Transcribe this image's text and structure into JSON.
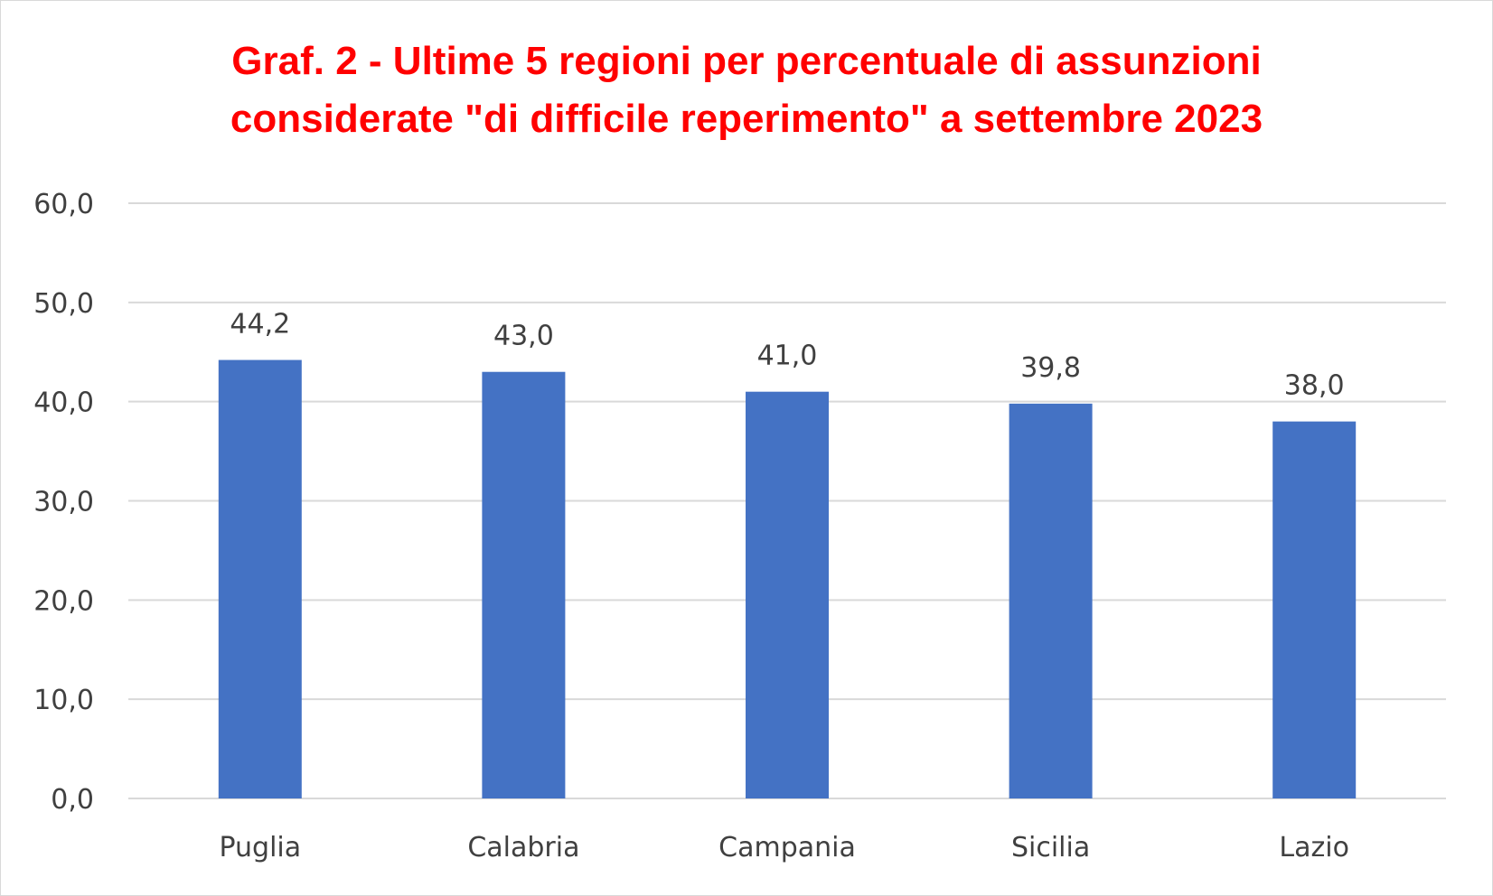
{
  "chart_data": {
    "type": "bar",
    "title_lines": [
      "Graf. 2 - Ultime 5 regioni per percentuale di assunzioni",
      "considerate \"di difficile reperimento\" a settembre 2023"
    ],
    "categories": [
      "Puglia",
      "Calabria",
      "Campania",
      "Sicilia",
      "Lazio"
    ],
    "values": [
      44.2,
      43.0,
      41.0,
      39.8,
      38.0
    ],
    "data_labels": [
      "44,2",
      "43,0",
      "41,0",
      "39,8",
      "38,0"
    ],
    "ylim": [
      0,
      60
    ],
    "yticks": [
      0,
      10,
      20,
      30,
      40,
      50,
      60
    ],
    "ytick_labels": [
      "0,0",
      "10,0",
      "20,0",
      "30,0",
      "40,0",
      "50,0",
      "60,0"
    ],
    "xlabel": "",
    "ylabel": "",
    "grid": true,
    "legend": "none",
    "colors": {
      "bar": "#4472C4",
      "title": "#FF0000",
      "grid": "#D9D9D9",
      "text": "#404040"
    }
  }
}
